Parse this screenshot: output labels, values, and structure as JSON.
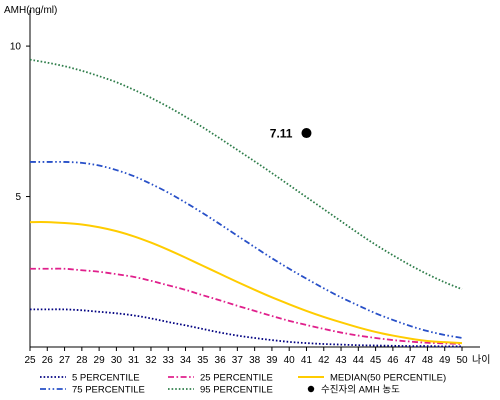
{
  "chart_data": {
    "type": "line",
    "ylabel": "AMH(ng/ml)",
    "xlabel": "나이",
    "xlim": [
      25,
      50
    ],
    "ylim": [
      0,
      11
    ],
    "x_ticks": [
      25,
      26,
      27,
      28,
      29,
      30,
      31,
      32,
      33,
      34,
      35,
      36,
      37,
      38,
      39,
      40,
      41,
      42,
      43,
      44,
      45,
      46,
      47,
      48,
      49,
      50
    ],
    "y_ticks": [
      5,
      10
    ],
    "grid": false,
    "legend_position": "bottom",
    "x": [
      25,
      26,
      27,
      28,
      29,
      30,
      31,
      32,
      33,
      34,
      35,
      36,
      37,
      38,
      39,
      40,
      41,
      42,
      43,
      44,
      45,
      46,
      47,
      48,
      49,
      50
    ],
    "series": [
      {
        "name": "5 PERCENTILE",
        "color": "#000080",
        "style": "dotted",
        "values": [
          1.25,
          1.25,
          1.25,
          1.22,
          1.17,
          1.12,
          1.05,
          0.95,
          0.83,
          0.72,
          0.6,
          0.48,
          0.38,
          0.3,
          0.23,
          0.17,
          0.13,
          0.1,
          0.08,
          0.06,
          0.05,
          0.04,
          0.03,
          0.03,
          0.02,
          0.02
        ]
      },
      {
        "name": "25 PERCENTILE",
        "color": "#e0208c",
        "style": "dashdot",
        "values": [
          2.6,
          2.6,
          2.6,
          2.55,
          2.5,
          2.42,
          2.33,
          2.2,
          2.05,
          1.9,
          1.72,
          1.55,
          1.37,
          1.2,
          1.03,
          0.87,
          0.73,
          0.6,
          0.48,
          0.38,
          0.3,
          0.23,
          0.18,
          0.14,
          0.12,
          0.1
        ]
      },
      {
        "name": "MEDIAN(50 PERCENTILE)",
        "color": "#ffcc00",
        "style": "solid",
        "values": [
          4.15,
          4.15,
          4.12,
          4.07,
          3.98,
          3.85,
          3.68,
          3.47,
          3.23,
          2.97,
          2.7,
          2.43,
          2.16,
          1.9,
          1.65,
          1.42,
          1.2,
          1.0,
          0.82,
          0.65,
          0.5,
          0.38,
          0.28,
          0.2,
          0.16,
          0.13
        ]
      },
      {
        "name": "75 PERCENTILE",
        "color": "#2850c8",
        "style": "dashdotdot",
        "values": [
          6.15,
          6.15,
          6.15,
          6.12,
          6.03,
          5.88,
          5.68,
          5.42,
          5.13,
          4.8,
          4.45,
          4.08,
          3.7,
          3.32,
          2.95,
          2.6,
          2.27,
          1.95,
          1.65,
          1.38,
          1.12,
          0.9,
          0.7,
          0.53,
          0.4,
          0.3
        ]
      },
      {
        "name": "95 PERCENTILE",
        "color": "#2e7d4a",
        "style": "dotted",
        "values": [
          9.55,
          9.45,
          9.33,
          9.18,
          9.0,
          8.8,
          8.55,
          8.28,
          7.98,
          7.65,
          7.3,
          6.93,
          6.55,
          6.17,
          5.78,
          5.38,
          4.98,
          4.58,
          4.18,
          3.78,
          3.4,
          3.05,
          2.72,
          2.42,
          2.15,
          1.92
        ]
      }
    ],
    "marker": {
      "label": "수진자의 AMH 농도",
      "x": 41,
      "y": 7.11,
      "text": "7.11",
      "color": "#000000"
    }
  }
}
